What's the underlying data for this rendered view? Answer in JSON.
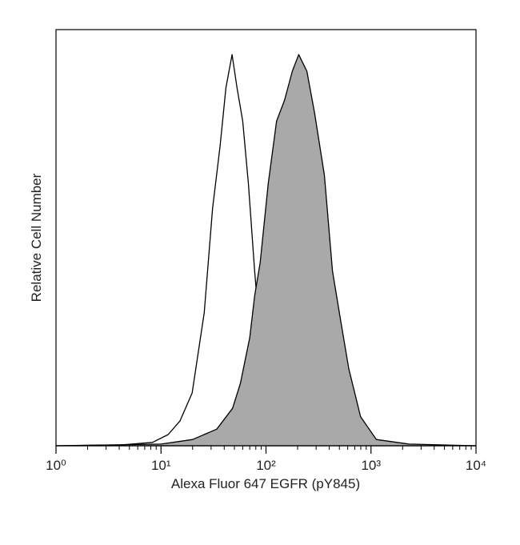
{
  "chart_data": {
    "type": "histogram-overlay",
    "x_label": "Alexa Fluor 647 EGFR (pY845)",
    "y_label": "Relative Cell Number",
    "xscale": "log",
    "xlim": [
      1,
      10000
    ],
    "xticks": [
      {
        "value": 1,
        "label": "10⁰"
      },
      {
        "value": 10,
        "label": "10¹"
      },
      {
        "value": 100,
        "label": "10²"
      },
      {
        "value": 1000,
        "label": "10³"
      },
      {
        "value": 10000,
        "label": "10⁴"
      }
    ],
    "ylim": [
      0,
      100
    ],
    "series": [
      {
        "color": "#000000",
        "fill": false,
        "x": [
          1,
          4.1,
          8.3,
          11.7,
          15.2,
          19.8,
          25.8,
          31,
          36.5,
          41.5,
          47.5,
          53,
          60,
          68,
          78,
          88,
          105,
          126,
          163,
          10000
        ],
        "values": [
          0,
          0.2,
          0.8,
          2.7,
          6,
          12.7,
          32,
          57,
          72,
          86,
          94,
          86,
          78,
          63,
          42,
          26,
          11,
          2,
          0.4,
          0
        ]
      },
      {
        "color": "#a9a9a9",
        "fill": true,
        "x": [
          1,
          10,
          20,
          34,
          48,
          57,
          70,
          78,
          88,
          105,
          126,
          150,
          178,
          205,
          245,
          290,
          360,
          430,
          515,
          615,
          795,
          1125,
          2300,
          10000
        ],
        "values": [
          0,
          0.4,
          1.5,
          4,
          9,
          15,
          26,
          36,
          44,
          63,
          78,
          83,
          90,
          94,
          90,
          80,
          65,
          42,
          30,
          18.5,
          7,
          1.5,
          0.4,
          0
        ]
      }
    ]
  }
}
